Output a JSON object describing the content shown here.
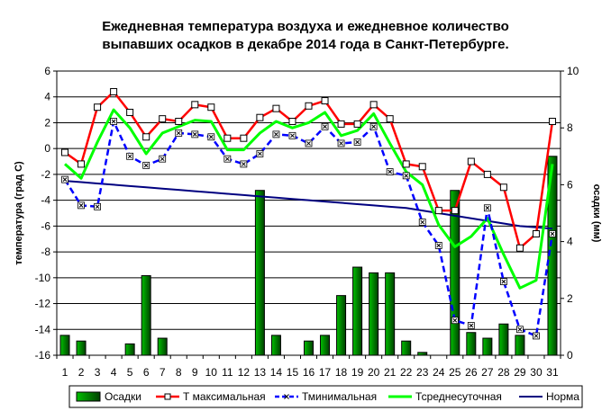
{
  "chart_data": {
    "type": "bar+line",
    "title_lines": [
      "Ежедневная температура воздуха и ежедневное количество",
      "выпавших осадков в декабре 2014 года в Санкт-Петербурге."
    ],
    "ylabel_left": "температура (град С)",
    "ylabel_right": "осадки (мм)",
    "x": [
      1,
      2,
      3,
      4,
      5,
      6,
      7,
      8,
      9,
      10,
      11,
      12,
      13,
      14,
      15,
      16,
      17,
      18,
      19,
      20,
      21,
      22,
      23,
      24,
      25,
      26,
      27,
      28,
      29,
      30,
      31
    ],
    "x_tick_labels": [
      "1",
      "2",
      "3",
      "4",
      "5",
      "6",
      "7",
      "8",
      "9",
      "10",
      "11",
      "12",
      "13",
      "14",
      "15",
      "16",
      "17",
      "18",
      "19",
      "20",
      "21",
      "22",
      "23",
      "24",
      "25",
      "26",
      "27",
      "28",
      "29",
      "30",
      "31"
    ],
    "ylim_left": [
      -16,
      6
    ],
    "yticks_left": [
      "6",
      "4",
      "2",
      "0",
      "-2",
      "-4",
      "-6",
      "-8",
      "-10",
      "-12",
      "-14",
      "-16"
    ],
    "ylim_right": [
      0,
      10
    ],
    "yticks_right": [
      "10",
      "8",
      "6",
      "4",
      "2",
      "0"
    ],
    "grid": "horizontal",
    "legend_position": "bottom",
    "series": [
      {
        "name": "Осадки",
        "kind": "bar",
        "axis": "right",
        "color": "#00a000",
        "values": [
          0.7,
          0.5,
          0,
          0,
          0.4,
          2.8,
          0.6,
          0,
          0,
          0,
          0,
          0,
          5.8,
          0.7,
          0,
          0.5,
          0.7,
          2.1,
          3.1,
          2.9,
          2.9,
          0.5,
          0.1,
          0,
          5.8,
          0.8,
          0.6,
          1.1,
          0.7,
          0,
          7.0
        ]
      },
      {
        "name": "Т максимальная",
        "kind": "line",
        "axis": "left",
        "color": "#ff0000",
        "values": [
          -0.3,
          -1.2,
          3.2,
          4.4,
          2.8,
          0.9,
          2.3,
          2.1,
          3.4,
          3.2,
          0.8,
          0.8,
          2.4,
          3.1,
          2.1,
          3.3,
          3.7,
          1.9,
          1.9,
          3.4,
          2.3,
          -1.2,
          -1.4,
          -4.8,
          -4.8,
          -1.0,
          -2.0,
          -3.0,
          -7.7,
          -6.6,
          2.1
        ]
      },
      {
        "name": "Тминимальная",
        "kind": "line",
        "axis": "left",
        "color": "#0000ff",
        "values": [
          -2.4,
          -4.4,
          -4.5,
          2.1,
          -0.6,
          -1.3,
          -0.8,
          1.2,
          1.1,
          0.9,
          -0.8,
          -1.2,
          -0.4,
          1.1,
          1.0,
          0.4,
          1.7,
          0.4,
          0.5,
          1.7,
          -1.8,
          -2.1,
          -5.7,
          -7.5,
          -13.3,
          -13.7,
          -4.6,
          -10.3,
          -14.0,
          -14.5,
          -6.6
        ]
      },
      {
        "name": "Тсреднесуточная",
        "kind": "line",
        "axis": "left",
        "color": "#00ff00",
        "values": [
          -1.2,
          -2.3,
          0.5,
          3.0,
          1.6,
          -0.4,
          1.2,
          1.7,
          2.2,
          2.1,
          -0.1,
          -0.1,
          1.2,
          2.1,
          1.6,
          2.0,
          2.8,
          1.0,
          1.4,
          2.7,
          0.4,
          -1.8,
          -2.8,
          -5.9,
          -7.6,
          -6.8,
          -5.4,
          -8.2,
          -10.8,
          -10.2,
          -1.2
        ]
      },
      {
        "name": "Норма",
        "kind": "line",
        "axis": "left",
        "color": "#000080",
        "values": [
          -2.5,
          -2.6,
          -2.7,
          -2.8,
          -2.9,
          -3.0,
          -3.1,
          -3.2,
          -3.3,
          -3.4,
          -3.5,
          -3.6,
          -3.7,
          -3.8,
          -3.9,
          -4.0,
          -4.1,
          -4.2,
          -4.3,
          -4.4,
          -4.5,
          -4.6,
          -4.8,
          -5.0,
          -5.2,
          -5.4,
          -5.6,
          -5.8,
          -6.0,
          -6.1,
          -6.2
        ]
      }
    ]
  }
}
